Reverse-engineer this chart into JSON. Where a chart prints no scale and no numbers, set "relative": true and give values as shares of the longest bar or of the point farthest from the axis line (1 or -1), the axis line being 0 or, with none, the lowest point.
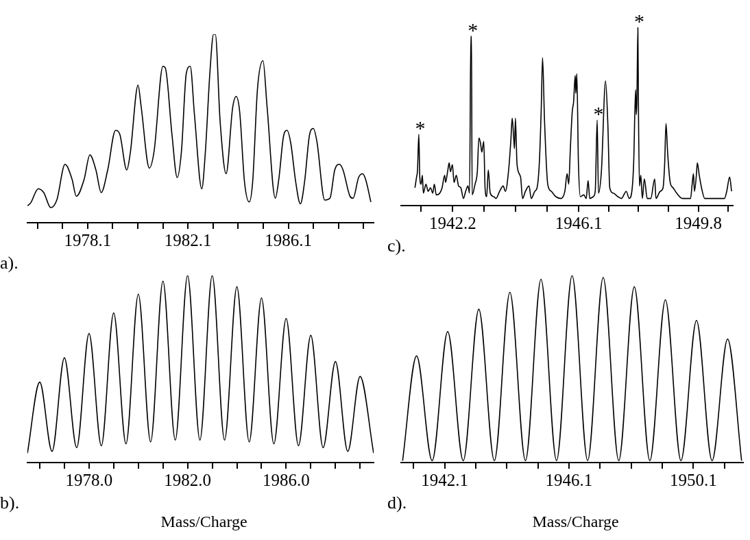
{
  "chart_data": [
    {
      "type": "line",
      "relative": true,
      "color": "#000000",
      "xlim": [
        1975.7,
        1989.5
      ],
      "xticks": [
        {
          "value": 1976.1,
          "label": null
        },
        {
          "value": 1977.1,
          "label": null
        },
        1978.1,
        {
          "value": 1979.1,
          "label": null
        },
        {
          "value": 1980.1,
          "label": null
        },
        {
          "value": 1981.1,
          "label": null
        },
        1982.1,
        {
          "value": 1983.1,
          "label": null
        },
        {
          "value": 1984.1,
          "label": null
        },
        {
          "value": 1985.1,
          "label": null
        },
        1986.1,
        {
          "value": 1987.1,
          "label": null
        },
        {
          "value": 1988.1,
          "label": null
        },
        {
          "value": 1989.1,
          "label": null
        }
      ],
      "x": [
        1975.7,
        1975.83,
        1976.13,
        1976.35,
        1976.63,
        1976.87,
        1977.2,
        1977.48,
        1977.65,
        1977.96,
        1978.19,
        1978.43,
        1978.64,
        1978.9,
        1979.21,
        1979.38,
        1979.66,
        1979.8,
        1980.11,
        1980.23,
        1980.56,
        1980.75,
        1981.1,
        1981.2,
        1981.46,
        1981.67,
        1981.84,
        1982.03,
        1982.19,
        1982.36,
        1982.65,
        1982.79,
        1982.98,
        1983.12,
        1983.19,
        1983.38,
        1983.62,
        1983.88,
        1984.02,
        1984.16,
        1984.35,
        1984.54,
        1984.68,
        1984.87,
        1985.09,
        1985.25,
        1985.58,
        1985.72,
        1985.91,
        1986.05,
        1986.2,
        1986.39,
        1986.58,
        1986.75,
        1986.95,
        1987.1,
        1987.24,
        1987.55,
        1987.76,
        1987.95,
        1988.14,
        1988.28,
        1988.56,
        1988.68,
        1988.9,
        1989.06,
        1989.18,
        1989.39
      ],
      "values": [
        0.09,
        0.105,
        0.18,
        0.16,
        0.08,
        0.12,
        0.31,
        0.23,
        0.14,
        0.23,
        0.36,
        0.28,
        0.16,
        0.28,
        0.49,
        0.47,
        0.28,
        0.37,
        0.73,
        0.62,
        0.29,
        0.38,
        0.83,
        0.82,
        0.47,
        0.24,
        0.38,
        0.79,
        0.83,
        0.57,
        0.18,
        0.37,
        0.81,
        1.0,
        1.0,
        0.54,
        0.26,
        0.61,
        0.67,
        0.59,
        0.22,
        0.11,
        0.22,
        0.71,
        0.86,
        0.62,
        0.13,
        0.23,
        0.46,
        0.49,
        0.42,
        0.22,
        0.1,
        0.22,
        0.47,
        0.5,
        0.43,
        0.12,
        0.13,
        0.28,
        0.31,
        0.28,
        0.14,
        0.13,
        0.24,
        0.26,
        0.23,
        0.11
      ],
      "annotations": [
        "a)."
      ]
    },
    {
      "type": "line",
      "relative": true,
      "color": "#000000",
      "xlim": [
        1940.6,
        1950.87
      ],
      "xticks": [
        {
          "value": 1941.225,
          "label": null
        },
        1942.2,
        {
          "value": 1943.175,
          "label": null
        },
        {
          "value": 1944.15,
          "label": null
        },
        {
          "value": 1945.125,
          "label": null
        },
        1946.1,
        {
          "value": 1947.025,
          "label": null
        },
        {
          "value": 1947.95,
          "label": null
        },
        {
          "value": 1948.875,
          "label": null
        },
        1949.8,
        {
          "value": 1950.725,
          "label": null
        }
      ],
      "x": [
        1941.03,
        1941.08,
        1941.11,
        1941.15,
        1941.18,
        1941.22,
        1941.26,
        1941.29,
        1941.37,
        1941.44,
        1941.51,
        1941.58,
        1941.63,
        1941.69,
        1941.8,
        1941.87,
        1941.95,
        1941.98,
        1942.04,
        1942.09,
        1942.13,
        1942.19,
        1942.24,
        1942.31,
        1942.38,
        1942.45,
        1942.53,
        1942.6,
        1942.67,
        1942.72,
        1942.76,
        1942.78,
        1942.8,
        1942.89,
        1942.96,
        1943.01,
        1943.06,
        1943.1,
        1943.16,
        1943.2,
        1943.25,
        1943.3,
        1943.36,
        1943.47,
        1943.54,
        1943.65,
        1943.76,
        1943.83,
        1943.93,
        1944.0,
        1944.04,
        1944.09,
        1944.11,
        1944.14,
        1944.19,
        1944.3,
        1944.36,
        1944.45,
        1944.56,
        1944.63,
        1944.74,
        1944.81,
        1944.88,
        1944.94,
        1944.98,
        1945.04,
        1945.14,
        1945.25,
        1945.39,
        1945.55,
        1945.67,
        1945.74,
        1945.79,
        1945.84,
        1945.9,
        1945.94,
        1945.99,
        1946.01,
        1946.04,
        1946.09,
        1946.15,
        1946.26,
        1946.33,
        1946.39,
        1946.44,
        1946.55,
        1946.61,
        1946.67,
        1946.71,
        1946.8,
        1946.93,
        1947.0,
        1947.06,
        1947.17,
        1947.31,
        1947.42,
        1947.57,
        1947.66,
        1947.75,
        1947.8,
        1947.86,
        1947.88,
        1947.9,
        1947.93,
        1947.95,
        1947.98,
        1948.02,
        1948.07,
        1948.13,
        1948.22,
        1948.33,
        1948.45,
        1948.49,
        1948.62,
        1948.71,
        1948.76,
        1948.8,
        1948.85,
        1948.93,
        1949.02,
        1949.13,
        1949.31,
        1949.56,
        1949.61,
        1949.65,
        1949.68,
        1949.74,
        1949.77,
        1949.83,
        1949.9,
        1950.0,
        1950.25,
        1950.47,
        1950.61,
        1950.68,
        1950.77,
        1950.83
      ],
      "values": [
        0.1,
        0.16,
        0.2,
        0.4,
        0.16,
        0.12,
        0.17,
        0.07,
        0.12,
        0.08,
        0.1,
        0.07,
        0.12,
        0.06,
        0.07,
        0.1,
        0.17,
        0.13,
        0.19,
        0.24,
        0.19,
        0.23,
        0.13,
        0.17,
        0.11,
        0.1,
        0.04,
        0.08,
        0.11,
        0.07,
        0.95,
        0.95,
        0.06,
        0.12,
        0.19,
        0.38,
        0.35,
        0.3,
        0.36,
        0.1,
        0.05,
        0.2,
        0.07,
        0.05,
        0.04,
        0.08,
        0.11,
        0.08,
        0.2,
        0.37,
        0.49,
        0.37,
        0.32,
        0.49,
        0.23,
        0.16,
        0.04,
        0.08,
        0.11,
        0.04,
        0.08,
        0.1,
        0.24,
        0.55,
        0.83,
        0.48,
        0.12,
        0.08,
        0.05,
        0.04,
        0.08,
        0.18,
        0.12,
        0.32,
        0.53,
        0.58,
        0.73,
        0.63,
        0.74,
        0.24,
        0.05,
        0.06,
        0.04,
        0.14,
        0.04,
        0.05,
        0.08,
        0.48,
        0.07,
        0.19,
        0.7,
        0.46,
        0.1,
        0.07,
        0.05,
        0.04,
        0.08,
        0.04,
        0.09,
        0.24,
        0.65,
        0.51,
        0.59,
        1.0,
        0.5,
        0.11,
        0.17,
        0.04,
        0.15,
        0.04,
        0.04,
        0.15,
        0.04,
        0.08,
        0.1,
        0.24,
        0.46,
        0.3,
        0.13,
        0.1,
        0.07,
        0.04,
        0.04,
        0.12,
        0.18,
        0.08,
        0.17,
        0.24,
        0.17,
        0.1,
        0.04,
        0.04,
        0.04,
        0.04,
        0.08,
        0.16,
        0.08
      ],
      "annotations": [
        "c).",
        {
          "text": "*",
          "x": 1941.15,
          "y": 0.4
        },
        {
          "text": "*",
          "x": 1942.78,
          "y": 0.95
        },
        {
          "text": "*",
          "x": 1946.67,
          "y": 0.48
        },
        {
          "text": "*",
          "x": 1947.93,
          "y": 1.0
        }
      ]
    },
    {
      "type": "line",
      "relative": true,
      "color": "#000000",
      "xlim": [
        1975.5,
        1989.55
      ],
      "xlabel": "Mass/Charge",
      "xticks": [
        {
          "value": 1976,
          "label": null
        },
        {
          "value": 1977,
          "label": null
        },
        {
          "value": 1978,
          "label": "1978.0"
        },
        {
          "value": 1979,
          "label": null
        },
        {
          "value": 1980,
          "label": null
        },
        {
          "value": 1981,
          "label": null
        },
        {
          "value": 1982,
          "label": "1982.0"
        },
        {
          "value": 1983,
          "label": null
        },
        {
          "value": 1984,
          "label": null
        },
        {
          "value": 1985,
          "label": null
        },
        {
          "value": 1986,
          "label": "1986.0"
        },
        {
          "value": 1987,
          "label": null
        },
        {
          "value": 1988,
          "label": null
        },
        {
          "value": 1989,
          "label": null
        }
      ],
      "x": [
        1975.5,
        1976.0,
        1976.5,
        1977.0,
        1977.5,
        1978.0,
        1978.5,
        1979.0,
        1979.5,
        1980.0,
        1980.5,
        1981.0,
        1981.5,
        1982.0,
        1982.5,
        1983.0,
        1983.5,
        1984.0,
        1984.5,
        1985.0,
        1985.5,
        1986.0,
        1986.5,
        1987.0,
        1987.5,
        1988.0,
        1988.5,
        1989.0,
        1989.55
      ],
      "values": [
        0.05,
        0.43,
        0.06,
        0.56,
        0.08,
        0.69,
        0.09,
        0.8,
        0.1,
        0.9,
        0.11,
        0.97,
        0.12,
        1.0,
        0.12,
        1.0,
        0.12,
        0.94,
        0.11,
        0.88,
        0.1,
        0.77,
        0.09,
        0.68,
        0.08,
        0.54,
        0.06,
        0.46,
        0.05
      ],
      "annotations": [
        "b)."
      ]
    },
    {
      "type": "line",
      "relative": true,
      "color": "#000000",
      "xlim": [
        1940.7,
        1951.7
      ],
      "xlabel": "Mass/Charge",
      "xticks": [
        {
          "value": 1941.1,
          "label": null
        },
        1942.1,
        {
          "value": 1943.1,
          "label": null
        },
        {
          "value": 1944.1,
          "label": null
        },
        {
          "value": 1945.1,
          "label": null
        },
        1946.1,
        {
          "value": 1947.1,
          "label": null
        },
        {
          "value": 1948.1,
          "label": null
        },
        {
          "value": 1949.1,
          "label": null
        },
        1950.1,
        {
          "value": 1951.1,
          "label": null
        }
      ],
      "x": [
        1940.75,
        1941.2,
        1941.7,
        1942.2,
        1942.7,
        1943.2,
        1943.7,
        1944.2,
        1944.7,
        1945.2,
        1945.7,
        1946.2,
        1946.7,
        1947.2,
        1947.7,
        1948.2,
        1948.7,
        1949.2,
        1949.7,
        1950.2,
        1950.7,
        1951.2,
        1951.65
      ],
      "values": [
        0.01,
        0.57,
        0.01,
        0.7,
        0.01,
        0.82,
        0.01,
        0.91,
        0.01,
        0.98,
        0.01,
        1.0,
        0.01,
        0.99,
        0.01,
        0.94,
        0.01,
        0.87,
        0.01,
        0.76,
        0.01,
        0.66,
        0.01
      ],
      "annotations": [
        "d)."
      ]
    }
  ]
}
